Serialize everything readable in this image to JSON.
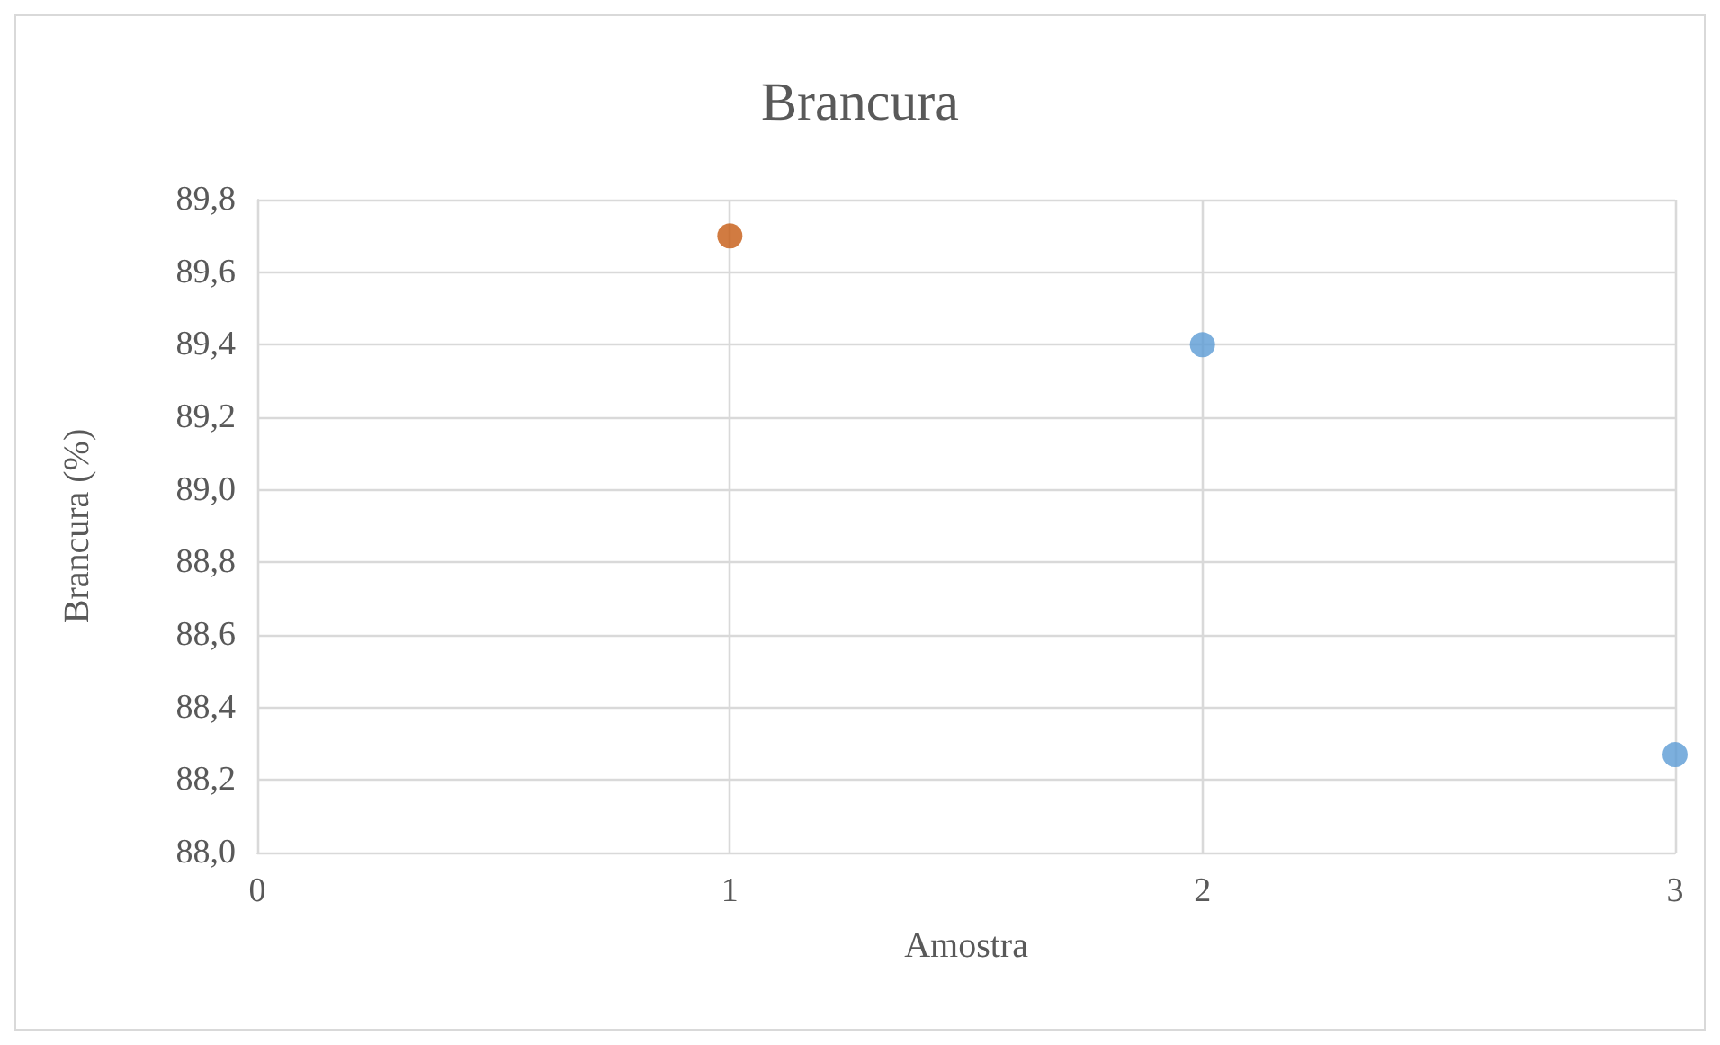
{
  "chart_data": {
    "type": "scatter",
    "title": "Brancura",
    "xlabel": "Amostra",
    "ylabel": "Brancura (%)",
    "x": [
      1,
      2,
      3
    ],
    "values": [
      89.7,
      89.4,
      88.27
    ],
    "colors": [
      "#c55a11",
      "#5b9bd5",
      "#5b9bd5"
    ],
    "xlim": [
      0,
      3
    ],
    "xticks": [
      0,
      1,
      2,
      3
    ],
    "ylim": [
      88,
      89.8
    ],
    "yticks": [
      {
        "value": 88,
        "label": "88,0"
      },
      {
        "value": 88.2,
        "label": "88,2"
      },
      {
        "value": 88.4,
        "label": "88,4"
      },
      {
        "value": 88.6,
        "label": "88,6"
      },
      {
        "value": 88.8,
        "label": "88,8"
      },
      {
        "value": 89,
        "label": "89,0"
      },
      {
        "value": 89.2,
        "label": "89,2"
      },
      {
        "value": 89.4,
        "label": "89,4"
      },
      {
        "value": 89.6,
        "label": "89,6"
      },
      {
        "value": 89.8,
        "label": "89,8"
      }
    ],
    "grid": true,
    "marker": "circle"
  }
}
